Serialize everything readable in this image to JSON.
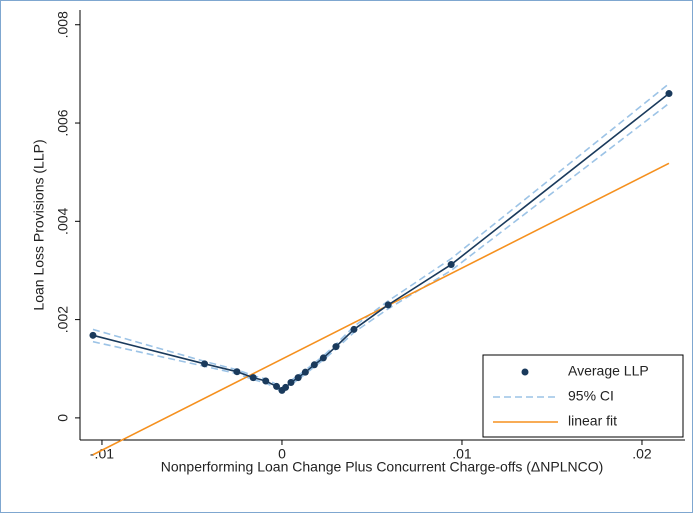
{
  "chart_data": {
    "type": "line",
    "xlabel": "Nonperforming Loan Change Plus Concurrent Charge-offs (ΔNPLNCO)",
    "ylabel": "Loan Loss Provisions (LLP)",
    "xlim": [
      -0.01122,
      0.02239
    ],
    "ylim": [
      -0.00045,
      0.0083
    ],
    "xticks": [
      {
        "value": -0.01,
        "label": "-.01"
      },
      0,
      {
        "value": 0.01,
        "label": ".01"
      },
      {
        "value": 0.02,
        "label": ".02"
      }
    ],
    "yticks": [
      0,
      {
        "value": 0.002,
        "label": ".002"
      },
      {
        "value": 0.004,
        "label": ".004"
      },
      {
        "value": 0.006,
        "label": ".006"
      },
      {
        "value": 0.008,
        "label": ".008"
      }
    ],
    "grid": false,
    "legend": "lower right",
    "series": [
      {
        "name": "Average LLP",
        "color": "#1a3a5c",
        "marker": true,
        "dash": false,
        "x": [
          -0.0105,
          -0.0043,
          -0.0025,
          -0.0016,
          -0.0009,
          -0.0003,
          0.0,
          0.0002,
          0.0005,
          0.0009,
          0.0013,
          0.0018,
          0.0023,
          0.003,
          0.004,
          0.0059,
          0.0094,
          0.0215
        ],
        "values": [
          0.00168,
          0.0011,
          0.00094,
          0.00082,
          0.00075,
          0.00064,
          0.00056,
          0.00062,
          0.00072,
          0.00082,
          0.00093,
          0.00108,
          0.00122,
          0.00145,
          0.0018,
          0.0023,
          0.00312,
          0.0066
        ]
      },
      {
        "name": "95% CI",
        "color": "#9cc3e6",
        "marker": false,
        "dash": true,
        "x": [
          -0.0105,
          -0.0043,
          -0.0025,
          -0.0016,
          -0.0009,
          -0.0003,
          0.0,
          0.0002,
          0.0005,
          0.0009,
          0.0013,
          0.0018,
          0.0023,
          0.003,
          0.004,
          0.0059,
          0.0094,
          0.0215
        ],
        "values": [
          0.0018,
          0.00115,
          0.00098,
          0.00086,
          0.00079,
          0.00068,
          0.0006,
          0.00066,
          0.00076,
          0.00086,
          0.00097,
          0.00112,
          0.00126,
          0.0015,
          0.00186,
          0.00238,
          0.00324,
          0.0068
        ]
      },
      {
        "color": "#9cc3e6",
        "marker": false,
        "dash": true,
        "x": [
          -0.0105,
          -0.0043,
          -0.0025,
          -0.0016,
          -0.0009,
          -0.0003,
          0.0,
          0.0002,
          0.0005,
          0.0009,
          0.0013,
          0.0018,
          0.0023,
          0.003,
          0.004,
          0.0059,
          0.0094,
          0.0215
        ],
        "values": [
          0.00155,
          0.00105,
          0.0009,
          0.00078,
          0.00071,
          0.0006,
          0.00052,
          0.00058,
          0.00068,
          0.00078,
          0.00089,
          0.00104,
          0.00118,
          0.0014,
          0.00174,
          0.00222,
          0.003,
          0.0064
        ]
      },
      {
        "name": "linear fit",
        "color": "#f5901e",
        "marker": false,
        "dash": false,
        "x": [
          -0.0105,
          0.0215
        ],
        "values": [
          -0.00075,
          0.00518
        ]
      }
    ]
  }
}
